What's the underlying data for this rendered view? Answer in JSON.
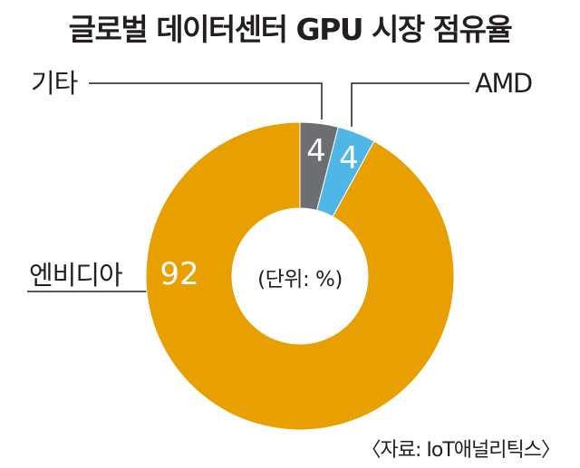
{
  "chart_data": {
    "type": "pie",
    "title": "글로벌 데이터센터 GPU 시장 점유율",
    "unit_note": "(단위: %)",
    "source": "〈자료: IoT애널리틱스〉",
    "slices": [
      {
        "label": "기타",
        "value": 4,
        "value_label": "4",
        "color": "#6d6e71"
      },
      {
        "label": "AMD",
        "value": 4,
        "value_label": "4",
        "color": "#4fb6e8"
      },
      {
        "label": "엔비디아",
        "value": 92,
        "value_label": "92",
        "color": "#e7a000"
      }
    ]
  }
}
